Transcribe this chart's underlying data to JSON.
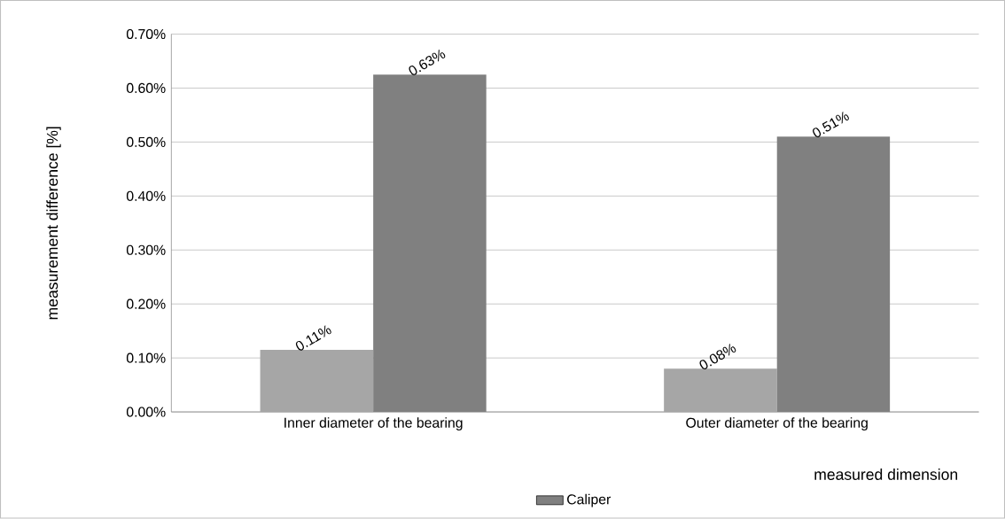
{
  "chart_data": {
    "type": "bar",
    "xlabel": "measured dimension",
    "ylabel": "measurement difference [%]",
    "categories": [
      "Inner diameter of the bearing",
      "Outer diameter of the bearing"
    ],
    "series": [
      {
        "color": "#a6a6a6",
        "values": [
          0.115,
          0.08
        ],
        "value_labels": [
          "0.11%",
          "0.08%"
        ]
      },
      {
        "name": "Caliper",
        "color": "#808080",
        "values": [
          0.625,
          0.51
        ],
        "value_labels": [
          "0.63%",
          "0.51%"
        ]
      }
    ],
    "ylim": [
      0,
      0.7
    ],
    "yticks": [
      {
        "value": 0,
        "label": "0.00%"
      },
      {
        "value": 0.1,
        "label": "0.10%"
      },
      {
        "value": 0.2,
        "label": "0.20%"
      },
      {
        "value": 0.3,
        "label": "0.30%"
      },
      {
        "value": 0.4,
        "label": "0.40%"
      },
      {
        "value": 0.5,
        "label": "0.50%"
      },
      {
        "value": 0.6,
        "label": "0.60%"
      },
      {
        "value": 0.7,
        "label": "0.70%"
      }
    ],
    "grid": "y",
    "legend": "bottom"
  }
}
